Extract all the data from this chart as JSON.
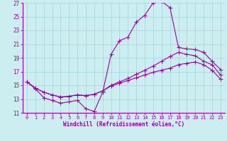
{
  "xlabel": "Windchill (Refroidissement éolien,°C)",
  "bg_color": "#cceef0",
  "grid_color": "#aad8dc",
  "line_color": "#9900aa",
  "xlim": [
    -0.5,
    23.5
  ],
  "ylim": [
    11,
    27
  ],
  "xticks": [
    0,
    1,
    2,
    3,
    4,
    5,
    6,
    7,
    8,
    9,
    10,
    11,
    12,
    13,
    14,
    15,
    16,
    17,
    18,
    19,
    20,
    21,
    22,
    23
  ],
  "yticks": [
    11,
    13,
    15,
    17,
    19,
    21,
    23,
    25,
    27
  ],
  "curve1_x": [
    0,
    1,
    2,
    3,
    4,
    5,
    6,
    7,
    8,
    9,
    10,
    11,
    12,
    13,
    14,
    15,
    16,
    17,
    18,
    19,
    20,
    21,
    22,
    23
  ],
  "curve1_y": [
    15.5,
    14.5,
    13.2,
    12.8,
    12.4,
    12.6,
    12.8,
    11.6,
    11.2,
    14.0,
    19.5,
    21.5,
    22.0,
    24.2,
    25.2,
    27.0,
    27.2,
    26.3,
    20.5,
    20.3,
    20.2,
    19.8,
    18.5,
    17.3
  ],
  "curve2_x": [
    0,
    1,
    2,
    3,
    4,
    5,
    6,
    7,
    8,
    9,
    10,
    11,
    12,
    13,
    14,
    15,
    16,
    17,
    18,
    19,
    20,
    21,
    22,
    23
  ],
  "curve2_y": [
    15.5,
    14.6,
    14.0,
    13.6,
    13.3,
    13.4,
    13.6,
    13.5,
    13.7,
    14.2,
    15.0,
    15.5,
    16.0,
    16.6,
    17.2,
    17.8,
    18.5,
    19.2,
    19.8,
    19.5,
    19.3,
    18.5,
    18.0,
    16.5
  ],
  "curve3_x": [
    0,
    1,
    2,
    3,
    4,
    5,
    6,
    7,
    8,
    9,
    10,
    11,
    12,
    13,
    14,
    15,
    16,
    17,
    18,
    19,
    20,
    21,
    22,
    23
  ],
  "curve3_y": [
    15.5,
    14.6,
    14.0,
    13.6,
    13.3,
    13.4,
    13.6,
    13.5,
    13.7,
    14.2,
    14.9,
    15.3,
    15.7,
    16.1,
    16.5,
    16.9,
    17.2,
    17.5,
    18.0,
    18.2,
    18.4,
    18.0,
    17.2,
    15.9
  ]
}
